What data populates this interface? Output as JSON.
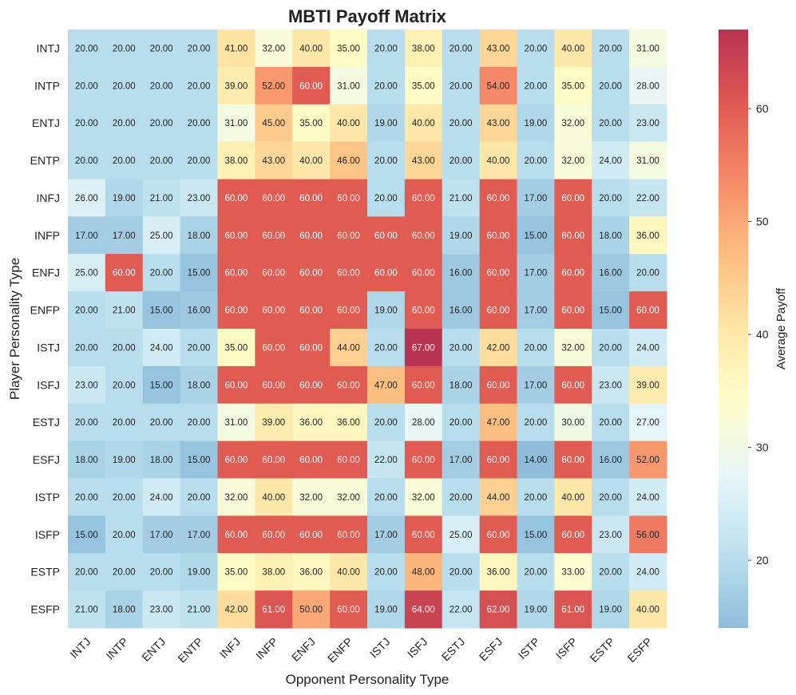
{
  "chart_data": {
    "type": "heatmap",
    "title": "MBTI Payoff Matrix",
    "xlabel": "Opponent Personality Type",
    "ylabel": "Player Personality Type",
    "x_categories": [
      "INTJ",
      "INTP",
      "ENTJ",
      "ENTP",
      "INFJ",
      "INFP",
      "ENFJ",
      "ENFP",
      "ISTJ",
      "ISFJ",
      "ESTJ",
      "ESFJ",
      "ISTP",
      "ISFP",
      "ESTP",
      "ESFP"
    ],
    "y_categories": [
      "INTJ",
      "INTP",
      "ENTJ",
      "ENTP",
      "INFJ",
      "INFP",
      "ENFJ",
      "ENFP",
      "ISTJ",
      "ISFJ",
      "ESTJ",
      "ESFJ",
      "ISTP",
      "ISFP",
      "ESTP",
      "ESFP"
    ],
    "values": [
      [
        20,
        20,
        20,
        20,
        41,
        32,
        40,
        35,
        20,
        38,
        20,
        43,
        20,
        40,
        20,
        31
      ],
      [
        20,
        20,
        20,
        20,
        39,
        52,
        60,
        31,
        20,
        35,
        20,
        54,
        20,
        35,
        20,
        28
      ],
      [
        20,
        20,
        20,
        20,
        31,
        45,
        35,
        40,
        19,
        40,
        20,
        43,
        19,
        32,
        20,
        23
      ],
      [
        20,
        20,
        20,
        20,
        38,
        43,
        40,
        46,
        20,
        43,
        20,
        40,
        20,
        32,
        24,
        31
      ],
      [
        26,
        19,
        21,
        23,
        60,
        60,
        60,
        60,
        20,
        60,
        21,
        60,
        17,
        60,
        20,
        22
      ],
      [
        17,
        17,
        25,
        18,
        60,
        60,
        60,
        60,
        60,
        60,
        19,
        60,
        15,
        60,
        18,
        36
      ],
      [
        25,
        60,
        20,
        15,
        60,
        60,
        60,
        60,
        60,
        60,
        16,
        60,
        17,
        60,
        16,
        20
      ],
      [
        20,
        21,
        15,
        16,
        60,
        60,
        60,
        60,
        19,
        60,
        16,
        60,
        17,
        60,
        15,
        60
      ],
      [
        20,
        20,
        24,
        20,
        35,
        60,
        60,
        44,
        20,
        67,
        20,
        42,
        20,
        32,
        20,
        24
      ],
      [
        23,
        20,
        15,
        18,
        60,
        60,
        60,
        60,
        47,
        60,
        18,
        60,
        17,
        60,
        23,
        39
      ],
      [
        20,
        20,
        20,
        20,
        31,
        39,
        36,
        36,
        20,
        28,
        20,
        47,
        20,
        30,
        20,
        27
      ],
      [
        18,
        19,
        18,
        15,
        60,
        60,
        60,
        60,
        22,
        60,
        17,
        60,
        14,
        60,
        16,
        52
      ],
      [
        20,
        20,
        24,
        20,
        32,
        40,
        32,
        32,
        20,
        32,
        20,
        44,
        20,
        40,
        20,
        24
      ],
      [
        15,
        20,
        17,
        17,
        60,
        60,
        60,
        60,
        17,
        60,
        25,
        60,
        15,
        60,
        23,
        56
      ],
      [
        20,
        20,
        20,
        19,
        35,
        38,
        36,
        40,
        20,
        48,
        20,
        36,
        20,
        33,
        20,
        24
      ],
      [
        21,
        18,
        23,
        21,
        42,
        61,
        50,
        60,
        19,
        64,
        22,
        62,
        19,
        61,
        19,
        40
      ]
    ],
    "value_format": "2 decimals",
    "colorbar": {
      "label": "Average Payoff",
      "ticks": [
        20,
        30,
        40,
        50,
        60
      ],
      "vmin": 14,
      "vmax": 67
    },
    "colormap": "RdYlBu_r",
    "grid": false
  }
}
